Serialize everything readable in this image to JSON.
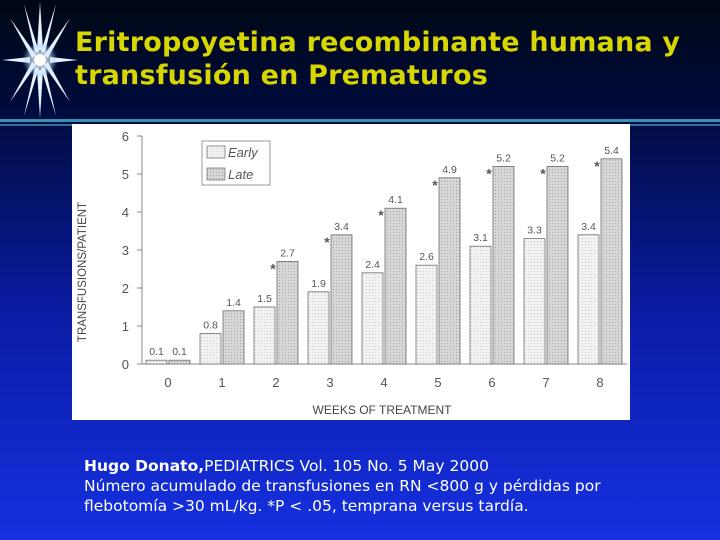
{
  "slide": {
    "title": "Eritropoyetina recombinante humana y\ntransfusión en  Prematuros",
    "caption_author": "Hugo Donato,",
    "caption_journal": "PEDIATRICS Vol. 105 No. 5 May 2000",
    "caption_line2": "Número acumulado de transfusiones en RN <800 g y pérdidas por",
    "caption_line3": "flebotomía >30 mL/kg. *P < .05, temprana versus tardía."
  },
  "colors": {
    "title": "#d8d600",
    "background_top": "#000a38",
    "background_bottom": "#1630e0",
    "early_bar": "#efefef",
    "late_bar": "#cfcfcf",
    "axis": "#8a8a8a"
  },
  "chart_data": {
    "type": "bar",
    "xlabel": "WEEKS OF TREATMENT",
    "ylabel": "TRANSFUSIONS/PATIENT",
    "ylim": [
      0,
      6
    ],
    "yticks": [
      "0",
      "1",
      "2",
      "3",
      "4",
      "5",
      "6"
    ],
    "categories": [
      "0",
      "1",
      "2",
      "3",
      "4",
      "5",
      "6",
      "7",
      "8"
    ],
    "legend_position": "top-left",
    "series": [
      {
        "name": "Early",
        "values": [
          0.1,
          0.8,
          1.5,
          1.9,
          2.4,
          2.6,
          3.1,
          3.3,
          3.4
        ],
        "labels": [
          "0.1",
          "0.8",
          "1.5",
          "1.9",
          "2.4",
          "2.6",
          "3.1",
          "3.3",
          "3.4"
        ]
      },
      {
        "name": "Late",
        "values": [
          0.1,
          1.4,
          2.7,
          3.4,
          4.1,
          4.9,
          5.2,
          5.2,
          5.4
        ],
        "labels": [
          "0.1",
          "1.4",
          "2.7",
          "3.4",
          "4.1",
          "4.9",
          "5.2",
          "5.2",
          "5.4"
        ],
        "significant": [
          false,
          false,
          true,
          true,
          true,
          true,
          true,
          true,
          true
        ]
      }
    ],
    "significance_marker": "*"
  }
}
